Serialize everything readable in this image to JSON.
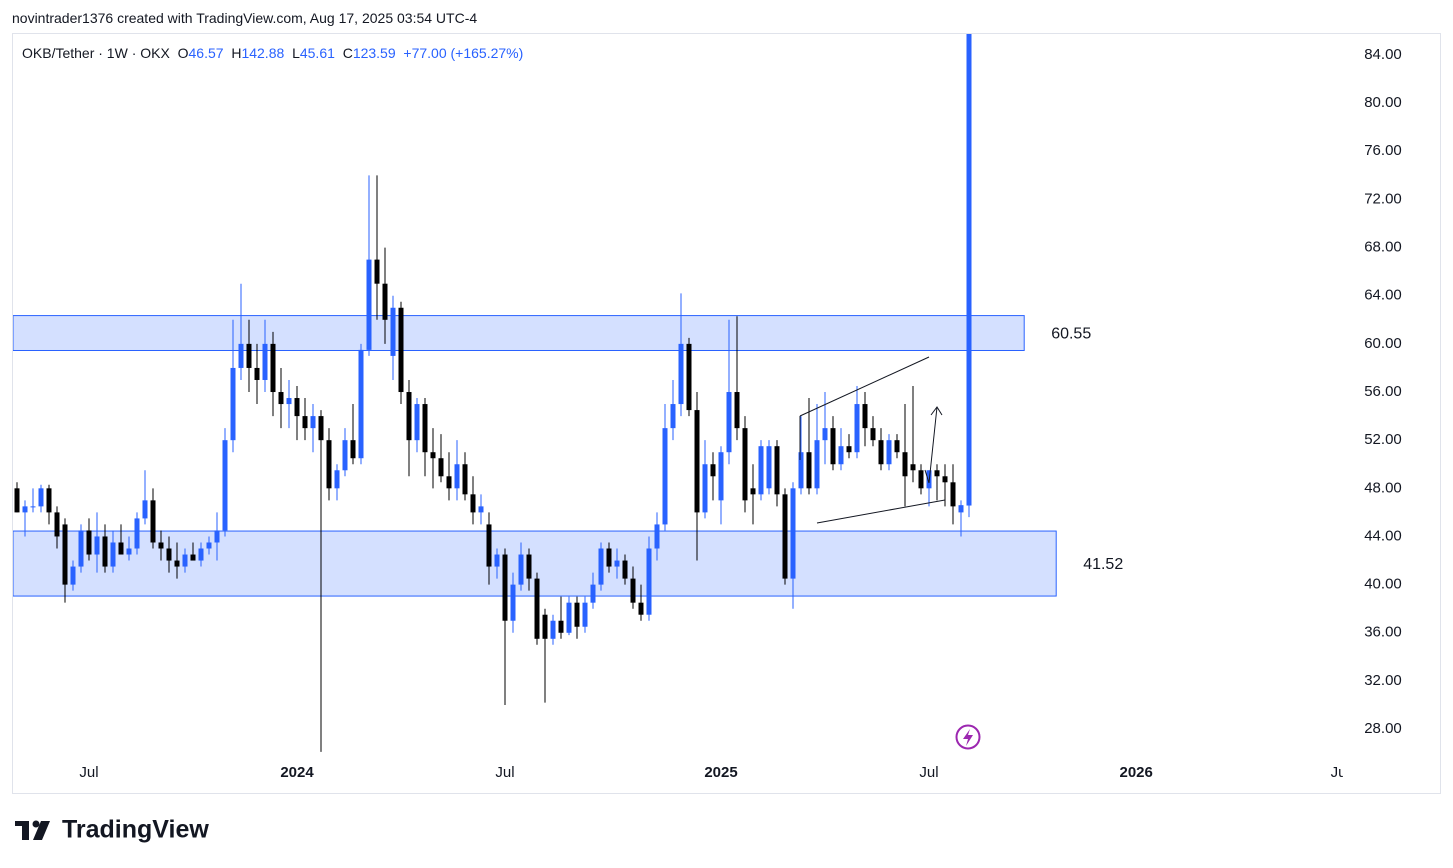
{
  "header": {
    "text": "novintrader1376 created with TradingView.com, Aug 17, 2025 03:54 UTC-4"
  },
  "footer": {
    "brand": "TradingView"
  },
  "chart_data": {
    "type": "candlestick",
    "symbol": "OKB/Tether · 1W · OKX",
    "ohlc_labels": [
      "O",
      "H",
      "L",
      "C"
    ],
    "change": "+77.00 (+165.27%)",
    "up_color": "#2962ff",
    "down_color": "#000000",
    "grid": false,
    "open": [
      48,
      46,
      46.5,
      46.5,
      48,
      46,
      45,
      40,
      41.5,
      44.5,
      42.5,
      44,
      41.5,
      43.5,
      42.5,
      43,
      45.5,
      47,
      43.5,
      43,
      42,
      41.5,
      42.5,
      42,
      43,
      43.5,
      44.5,
      52,
      58,
      60,
      58,
      57,
      60,
      56,
      55,
      55.5,
      54,
      53,
      54,
      52,
      48,
      49.5,
      52,
      50.5,
      59.5,
      67,
      65,
      59,
      63,
      56,
      52,
      55,
      51,
      50.5,
      49,
      48,
      50,
      47.5,
      46,
      45,
      41.5,
      42.5,
      37,
      40,
      42.5,
      40.5,
      37.5,
      35.5,
      37,
      36,
      38.5,
      36.5,
      38.5,
      40,
      43,
      41.5,
      42,
      40.5,
      38.5,
      37.5,
      43,
      45,
      53,
      55,
      60,
      54.5,
      46,
      50,
      47,
      51,
      56,
      53,
      48,
      47.5,
      48,
      51.5,
      47.5,
      40.5,
      48,
      51,
      48,
      52,
      53,
      50,
      51.5,
      51,
      55,
      53,
      52,
      50,
      52,
      51,
      50,
      49.5,
      48,
      49.5,
      49,
      48.5,
      46,
      46.57
    ],
    "high": [
      48.5,
      47,
      48,
      48.3,
      48.3,
      46.5,
      45.5,
      42,
      45,
      45.5,
      46,
      45,
      44.5,
      45,
      44,
      46,
      49.5,
      48,
      44.5,
      44,
      43.5,
      43,
      43.5,
      43.5,
      44,
      46,
      53,
      62,
      65,
      62,
      60,
      62,
      61,
      58,
      57,
      56.5,
      55.5,
      55,
      54.5,
      53,
      50,
      53,
      55,
      60,
      74,
      74,
      68,
      64,
      63.5,
      57,
      55.5,
      55.5,
      53,
      52.5,
      51,
      52,
      51,
      49,
      47.5,
      46,
      43,
      43,
      41,
      43.5,
      43,
      41,
      38,
      37.5,
      39,
      39,
      39,
      39,
      41,
      43.5,
      43.5,
      43,
      42.5,
      41.5,
      40,
      44,
      46,
      55,
      57,
      64.2,
      60.5,
      56,
      52,
      51,
      51.5,
      62,
      62.3,
      54,
      50,
      52,
      52,
      52,
      48,
      48.5,
      54,
      55.5,
      55,
      56,
      54,
      53,
      52.5,
      56.5,
      56,
      54,
      53,
      52.5,
      52.5,
      55,
      56.5,
      50,
      49.5,
      50,
      50,
      50,
      47,
      142.88
    ],
    "low": [
      46,
      44,
      46,
      46,
      45,
      43,
      38.5,
      39.5,
      41,
      42,
      41,
      41,
      41,
      42.5,
      42,
      42.5,
      45,
      43,
      42,
      41,
      40.5,
      41,
      42,
      41.5,
      42.5,
      42,
      44,
      51,
      57,
      56,
      55,
      56,
      54,
      53,
      53,
      52,
      52,
      51,
      26.1,
      47,
      47,
      49,
      50,
      50,
      59,
      62,
      60,
      57,
      55,
      49,
      51,
      49,
      48,
      48.5,
      47,
      47,
      47,
      45,
      45,
      40,
      40.5,
      30,
      36,
      39.5,
      39.5,
      35,
      30.2,
      35,
      35.5,
      35.8,
      35.5,
      36,
      38,
      39.5,
      41,
      40.5,
      40,
      38,
      37,
      37,
      42,
      44.5,
      52,
      54,
      54,
      42,
      45.5,
      47,
      45,
      50,
      52,
      46,
      45,
      47,
      47.5,
      46.5,
      40,
      38,
      47.5,
      47.5,
      47.5,
      50,
      49.5,
      49.5,
      50.5,
      50.5,
      51.5,
      51.5,
      49.5,
      49.5,
      50.5,
      46.5,
      48.5,
      47.5,
      46.5,
      47,
      46.5,
      45,
      44,
      45.61
    ],
    "close": [
      46,
      46.5,
      46.5,
      48,
      46,
      44,
      40,
      41.5,
      44.5,
      42.5,
      44,
      41.5,
      43.5,
      42.5,
      43,
      45.5,
      47,
      43.5,
      43,
      42,
      41.5,
      42.5,
      42,
      43,
      43.5,
      44.5,
      52,
      58,
      60,
      58,
      57,
      60,
      56,
      55,
      55.5,
      54,
      53,
      54,
      52,
      48,
      49.5,
      52,
      50.5,
      59.5,
      67,
      65,
      62,
      63,
      56,
      52,
      55,
      51,
      50.5,
      49,
      48,
      50,
      47.5,
      46,
      46.5,
      41.5,
      42.5,
      37,
      40,
      42.5,
      40.5,
      35.5,
      35.5,
      37,
      36,
      38.5,
      36.5,
      38.5,
      40,
      43,
      41.5,
      42,
      40.5,
      38.5,
      37.5,
      43,
      45,
      53,
      55,
      60,
      54.5,
      46,
      50,
      49,
      51,
      56,
      53,
      47,
      47.5,
      51.5,
      51.5,
      47.5,
      40.5,
      48,
      51,
      48,
      52,
      53,
      50,
      51.5,
      51,
      55,
      53,
      52,
      50,
      52,
      51,
      49,
      49.5,
      48,
      49.5,
      49,
      48.5,
      46.5,
      46.6,
      123.59
    ],
    "xlim": [
      -0.5,
      165.75
    ],
    "xticks": [
      {
        "value": 9,
        "label": "Jul"
      },
      {
        "value": 35,
        "label": "2024"
      },
      {
        "value": 61,
        "label": "Jul"
      },
      {
        "value": 88,
        "label": "2025"
      },
      {
        "value": 114,
        "label": "Jul"
      },
      {
        "value": 139.9,
        "label": "2026"
      },
      {
        "value": 165.4,
        "label": "Jul"
      }
    ],
    "ylim": [
      25.43,
      85.66
    ],
    "yticks": [
      {
        "value": 28,
        "label": "28.00"
      },
      {
        "value": 32,
        "label": "32.00"
      },
      {
        "value": 36,
        "label": "36.00"
      },
      {
        "value": 40,
        "label": "40.00"
      },
      {
        "value": 44,
        "label": "44.00"
      },
      {
        "value": 48,
        "label": "48.00"
      },
      {
        "value": 52,
        "label": "52.00"
      },
      {
        "value": 56,
        "label": "56.00"
      },
      {
        "value": 60,
        "label": "60.00"
      },
      {
        "value": 64,
        "label": "64.00"
      },
      {
        "value": 68,
        "label": "68.00"
      },
      {
        "value": 72,
        "label": "72.00"
      },
      {
        "value": 76,
        "label": "76.00"
      },
      {
        "value": 80,
        "label": "80.00"
      },
      {
        "value": 84,
        "label": "84.00"
      }
    ],
    "zones": [
      {
        "label": "60.55",
        "top": 62.35,
        "bottom": 59.45,
        "end": 125.9
      },
      {
        "label": "41.52",
        "top": 44.45,
        "bottom": 39.05,
        "end": 129.9
      }
    ]
  }
}
